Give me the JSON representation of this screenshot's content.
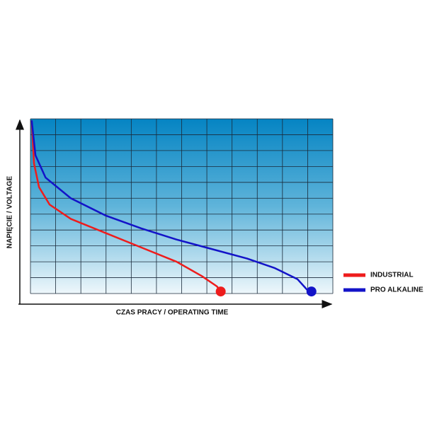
{
  "chart_data": {
    "type": "line",
    "x_label": "CZAS PRACY / OPERATING TIME",
    "y_label": "NAPIĘCIE / VOLTAGE",
    "xlim": [
      0,
      12
    ],
    "ylim": [
      0,
      11
    ],
    "grid": true,
    "legend": "right",
    "series": [
      {
        "name": "INDUSTRIAL",
        "color": "#ee1c1c",
        "x": [
          0.05,
          0.14,
          0.34,
          0.76,
          1.6,
          3.0,
          4.4,
          5.8,
          6.8,
          7.4,
          7.55
        ],
        "values": [
          10.9,
          8.2,
          6.7,
          5.6,
          4.7,
          3.8,
          2.9,
          2.0,
          1.1,
          0.45,
          0.13
        ]
      },
      {
        "name": "PRO ALKALINE",
        "color": "#1313c8",
        "x": [
          0.05,
          0.2,
          0.6,
          1.6,
          3.0,
          4.4,
          5.8,
          7.2,
          8.6,
          9.7,
          10.6,
          11.0,
          11.15
        ],
        "values": [
          10.9,
          8.7,
          7.3,
          6.0,
          4.9,
          4.1,
          3.4,
          2.8,
          2.2,
          1.6,
          0.9,
          0.2,
          0.13
        ]
      }
    ]
  }
}
